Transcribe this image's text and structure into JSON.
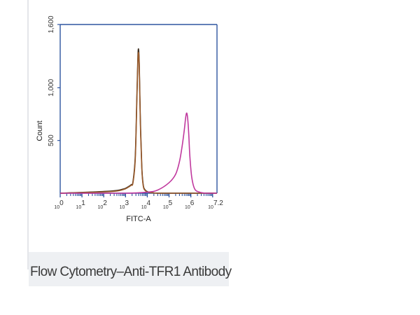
{
  "figure": {
    "caption": "Flow Cytometry–Anti-TFR1 Antibody"
  },
  "chart_data": {
    "type": "line",
    "title": "",
    "xlabel": "FITC-A",
    "ylabel": "Count",
    "x_scale": "log",
    "xlim": [
      1,
      15848932
    ],
    "ylim": [
      0,
      1600
    ],
    "x_ticks": [
      {
        "value": 1,
        "base": "10",
        "exp": "0"
      },
      {
        "value": 10,
        "base": "10",
        "exp": "1"
      },
      {
        "value": 100,
        "base": "10",
        "exp": "2"
      },
      {
        "value": 1000,
        "base": "10",
        "exp": "3"
      },
      {
        "value": 10000,
        "base": "10",
        "exp": "4"
      },
      {
        "value": 100000,
        "base": "10",
        "exp": "5"
      },
      {
        "value": 1000000,
        "base": "10",
        "exp": "6"
      },
      {
        "value": 15848932,
        "base": "10",
        "exp": "7.2"
      }
    ],
    "y_ticks": [
      {
        "value": 500,
        "label": "500"
      },
      {
        "value": 1000,
        "label": "1,000"
      },
      {
        "value": 1600,
        "label": "1,600"
      }
    ],
    "grid": false,
    "legend": "none",
    "series": [
      {
        "color": "#3b2d1f",
        "x": [
          1,
          200,
          800,
          1300,
          1800,
          2200,
          2800,
          3300,
          3700,
          4000,
          4300,
          4800,
          5600,
          6500,
          8000,
          12000,
          30000,
          100000,
          1000000,
          15848932
        ],
        "y": [
          0,
          20,
          40,
          60,
          80,
          110,
          350,
          900,
          1300,
          1360,
          1200,
          700,
          250,
          80,
          30,
          10,
          0,
          0,
          0,
          0
        ]
      },
      {
        "color": "#9a5a2a",
        "x": [
          1,
          200,
          800,
          1300,
          1800,
          2200,
          2800,
          3300,
          3700,
          4000,
          4300,
          4800,
          5600,
          6500,
          8000,
          12000,
          30000,
          100000,
          1000000,
          15848932
        ],
        "y": [
          0,
          15,
          35,
          55,
          75,
          100,
          320,
          860,
          1250,
          1330,
          1170,
          660,
          230,
          70,
          25,
          8,
          0,
          0,
          0,
          0
        ]
      },
      {
        "color": "#c0399e",
        "x": [
          1,
          1000,
          10000,
          30000,
          100000,
          200000,
          300000,
          400000,
          500000,
          580000,
          650000,
          720000,
          800000,
          900000,
          1100000,
          1500000,
          2500000,
          5000000,
          15848932
        ],
        "y": [
          0,
          0,
          10,
          30,
          100,
          180,
          300,
          450,
          600,
          720,
          760,
          700,
          560,
          350,
          150,
          40,
          10,
          0,
          0
        ]
      }
    ]
  }
}
